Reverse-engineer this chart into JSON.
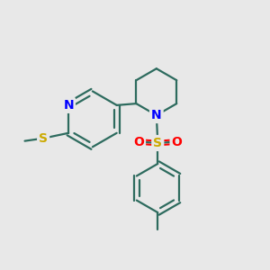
{
  "bg_color": "#e8e8e8",
  "bond_color": "#2d6b5e",
  "bond_width": 1.6,
  "atom_colors": {
    "N": "#0000ff",
    "S_thio": "#ccaa00",
    "S_sulfonyl": "#ccaa00",
    "O": "#ff0000",
    "C": "#2d6b5e"
  },
  "font_size_atom": 10
}
